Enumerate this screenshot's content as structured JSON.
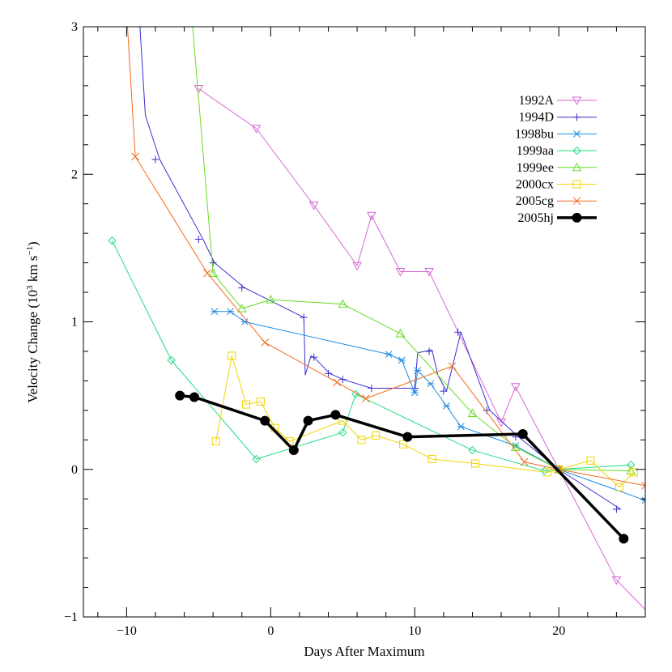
{
  "chart_data": {
    "type": "line",
    "title": "",
    "xlabel": "Days After Maximum",
    "ylabel": "Velocity Change (10³ km s⁻¹)",
    "ylabel_parts": {
      "pre": "Velocity Change (10",
      "exp1": "3",
      "mid": " km s",
      "exp2": "−1",
      "post": ")"
    },
    "xlim": [
      -13,
      26
    ],
    "ylim": [
      -1,
      3
    ],
    "x_ticks": [
      -10,
      0,
      10,
      20
    ],
    "y_ticks": [
      -1,
      0,
      1,
      2,
      3
    ],
    "x_tick_labels": [
      "−10",
      "0",
      "10",
      "20"
    ],
    "y_tick_labels": [
      "−1",
      "0",
      "1",
      "2",
      "3"
    ],
    "grid": false,
    "legend_position": "top-right",
    "series": [
      {
        "name": "1992A",
        "color": "#d966d6",
        "marker": "triangle-down",
        "width": 1,
        "x": [
          -5,
          -1,
          3,
          7,
          9,
          11,
          17,
          24,
          27
        ],
        "y": [
          2.58,
          2.31,
          1.79,
          1.72,
          1.34,
          1.34,
          0.56,
          -0.75,
          -1.05
        ],
        "line_x": [
          -5,
          -1,
          3,
          6,
          7,
          9,
          11,
          16,
          17,
          20,
          24,
          27
        ],
        "line_y": [
          2.58,
          2.31,
          1.79,
          1.38,
          1.72,
          1.34,
          1.34,
          0.32,
          0.56,
          0.0,
          -0.75,
          -1.05
        ],
        "extra_marker_x": [
          6,
          16
        ],
        "extra_marker_y": [
          1.38,
          0.32
        ]
      },
      {
        "name": "1994D",
        "color": "#3b2fd0",
        "marker": "plus",
        "width": 1,
        "x": [
          -9,
          -8,
          -5,
          -4,
          -2,
          2.3,
          3,
          4,
          5,
          7,
          10,
          11,
          12,
          13,
          15,
          17,
          20,
          24
        ],
        "y": [
          3.2,
          2.1,
          1.56,
          1.4,
          1.23,
          1.03,
          0.76,
          0.65,
          0.61,
          0.55,
          0.55,
          0.8,
          0.53,
          0.93,
          0.4,
          0.22,
          0.0,
          -0.27
        ],
        "line_x": [
          -9.2,
          -8.7,
          -7.7,
          -4.7,
          -3.9,
          -1.8,
          2.3,
          2.4,
          2.8,
          3.1,
          4.1,
          5.0,
          7.0,
          10.0,
          10.2,
          11.2,
          11.6,
          12.2,
          13.2,
          15.2,
          17.2,
          20.0,
          24.3
        ],
        "line_y": [
          3.2,
          2.4,
          2.1,
          1.56,
          1.4,
          1.23,
          1.03,
          0.64,
          0.77,
          0.75,
          0.65,
          0.61,
          0.55,
          0.55,
          0.79,
          0.81,
          0.64,
          0.53,
          0.93,
          0.4,
          0.22,
          0.0,
          -0.27
        ]
      },
      {
        "name": "1998bu",
        "color": "#1e8ee6",
        "marker": "asterisk",
        "width": 1,
        "x": [
          -3.9,
          -2.8,
          -1.8,
          8.2,
          9.1,
          10.0,
          10.2,
          11.1,
          12.2,
          13.2,
          17.0,
          20.0,
          26.0
        ],
        "y": [
          1.07,
          1.07,
          1.0,
          0.78,
          0.74,
          0.52,
          0.67,
          0.58,
          0.43,
          0.29,
          0.16,
          0.0,
          -0.21
        ]
      },
      {
        "name": "1999aa",
        "color": "#22dd88",
        "marker": "diamond",
        "width": 1,
        "x": [
          -11.0,
          -6.9,
          -1.0,
          5.0,
          5.9,
          14.0,
          19.0,
          20.0,
          25.0
        ],
        "y": [
          1.55,
          0.74,
          0.07,
          0.25,
          0.51,
          0.13,
          -0.01,
          0.0,
          0.03
        ]
      },
      {
        "name": "1999ee",
        "color": "#66dd22",
        "marker": "triangle-up",
        "width": 1,
        "x": [
          -4.0,
          -2.0,
          0.0,
          5.0,
          9.0,
          14.0,
          17.0,
          20.0,
          25.0
        ],
        "y": [
          1.33,
          1.09,
          1.15,
          1.12,
          0.92,
          0.38,
          0.15,
          0.0,
          -0.01
        ],
        "line_x": [
          -5.5,
          -4.0,
          -2.0,
          0.0,
          5.0,
          9.0,
          14.0,
          17.0,
          20.0,
          25.0
        ],
        "line_y": [
          3.1,
          1.33,
          1.09,
          1.15,
          1.12,
          0.92,
          0.38,
          0.15,
          0.0,
          -0.01
        ]
      },
      {
        "name": "2000cx",
        "color": "#f2d400",
        "marker": "square",
        "width": 1,
        "x": [
          -3.8,
          -2.7,
          -1.7,
          -0.7,
          0.3,
          1.3,
          5.0,
          6.3,
          7.3,
          9.2,
          11.2,
          14.2,
          19.2,
          20.0,
          22.2,
          24.2,
          25.2
        ],
        "y": [
          0.19,
          0.77,
          0.44,
          0.46,
          0.28,
          0.19,
          0.33,
          0.2,
          0.23,
          0.17,
          0.07,
          0.04,
          -0.02,
          0.0,
          0.06,
          -0.12,
          -0.02
        ]
      },
      {
        "name": "2005cg",
        "color": "#f26a1c",
        "marker": "x",
        "width": 1,
        "x": [
          -9.4,
          -4.4,
          -0.4,
          4.6,
          6.6,
          12.6,
          17.6,
          20.0,
          26.0
        ],
        "y": [
          2.12,
          1.33,
          0.86,
          0.59,
          0.48,
          0.7,
          0.05,
          0.0,
          -0.11
        ],
        "line_x": [
          -10.0,
          -9.4,
          -4.4,
          -0.4,
          4.6,
          6.6,
          12.6,
          17.6,
          20.0,
          26.0
        ],
        "line_y": [
          3.1,
          2.12,
          1.33,
          0.86,
          0.59,
          0.48,
          0.7,
          0.05,
          0.0,
          -0.11
        ]
      },
      {
        "name": "2005hj",
        "color": "#000000",
        "marker": "dot",
        "width": 3.5,
        "x": [
          -6.3,
          -5.3,
          -0.4,
          1.6,
          2.6,
          4.5,
          9.5,
          17.5,
          24.5
        ],
        "y": [
          0.5,
          0.49,
          0.33,
          0.13,
          0.33,
          0.37,
          0.22,
          0.24,
          -0.47
        ]
      }
    ]
  }
}
